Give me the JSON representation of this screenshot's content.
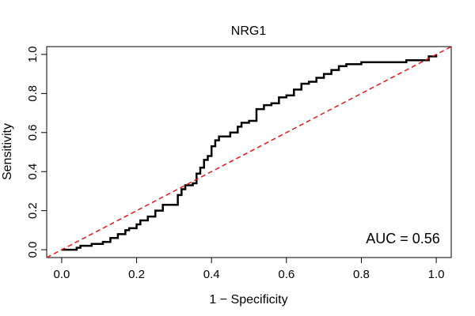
{
  "chart_data": {
    "type": "line",
    "title": "NRG1",
    "xlabel": "1 − Specificity",
    "ylabel": "Sensitivity",
    "xlim": [
      -0.04,
      1.04
    ],
    "ylim": [
      -0.04,
      1.04
    ],
    "xticks": [
      0.0,
      0.2,
      0.4,
      0.6,
      0.8,
      1.0
    ],
    "xtick_labels": [
      "0.0",
      "0.2",
      "0.4",
      "0.6",
      "0.8",
      "1.0"
    ],
    "yticks": [
      0.0,
      0.2,
      0.4,
      0.6,
      0.8,
      1.0
    ],
    "ytick_labels": [
      "0.0",
      "0.2",
      "0.4",
      "0.6",
      "0.8",
      "1.0"
    ],
    "grid": false,
    "annotation": "AUC = 0.56",
    "colors": {
      "roc": "#000000",
      "reference": "#e41a1c"
    },
    "series": [
      {
        "style": "solid",
        "x": [
          0.0,
          0.02,
          0.04,
          0.05,
          0.08,
          0.11,
          0.13,
          0.15,
          0.17,
          0.18,
          0.2,
          0.21,
          0.23,
          0.25,
          0.27,
          0.3,
          0.31,
          0.32,
          0.33,
          0.35,
          0.36,
          0.37,
          0.38,
          0.39,
          0.4,
          0.41,
          0.42,
          0.45,
          0.47,
          0.48,
          0.5,
          0.52,
          0.54,
          0.56,
          0.58,
          0.6,
          0.62,
          0.64,
          0.66,
          0.68,
          0.7,
          0.72,
          0.74,
          0.76,
          0.8,
          0.85,
          0.9,
          0.92,
          0.95,
          0.98,
          1.0
        ],
        "y": [
          0.0,
          0.0,
          0.01,
          0.02,
          0.03,
          0.04,
          0.06,
          0.08,
          0.1,
          0.11,
          0.13,
          0.15,
          0.17,
          0.2,
          0.23,
          0.23,
          0.28,
          0.31,
          0.33,
          0.34,
          0.39,
          0.42,
          0.46,
          0.48,
          0.53,
          0.56,
          0.58,
          0.6,
          0.63,
          0.65,
          0.66,
          0.72,
          0.74,
          0.75,
          0.78,
          0.79,
          0.82,
          0.85,
          0.86,
          0.88,
          0.9,
          0.92,
          0.94,
          0.95,
          0.96,
          0.96,
          0.96,
          0.97,
          0.97,
          0.99,
          1.0
        ]
      },
      {
        "style": "dashed",
        "x": [
          -0.04,
          1.04
        ],
        "y": [
          -0.04,
          1.04
        ]
      }
    ]
  }
}
